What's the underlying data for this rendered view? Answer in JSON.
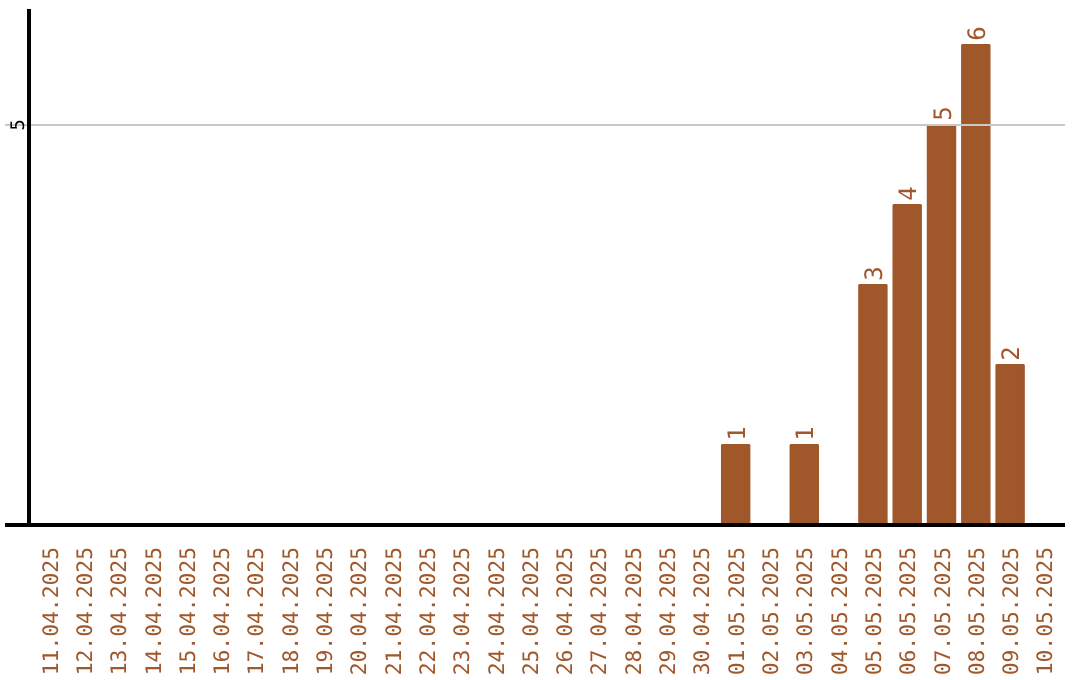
{
  "chart_data": {
    "type": "bar",
    "data_labels": true,
    "ylim": [
      0,
      6.45
    ],
    "categories": [
      "11.04.2025",
      "12.04.2025",
      "13.04.2025",
      "14.04.2025",
      "15.04.2025",
      "16.04.2025",
      "17.04.2025",
      "18.04.2025",
      "19.04.2025",
      "20.04.2025",
      "21.04.2025",
      "22.04.2025",
      "23.04.2025",
      "24.04.2025",
      "25.04.2025",
      "26.04.2025",
      "27.04.2025",
      "28.04.2025",
      "29.04.2025",
      "30.04.2025",
      "01.05.2025",
      "02.05.2025",
      "03.05.2025",
      "04.05.2025",
      "05.05.2025",
      "06.05.2025",
      "07.05.2025",
      "08.05.2025",
      "09.05.2025",
      "10.05.2025"
    ],
    "values": [
      null,
      null,
      null,
      null,
      null,
      null,
      null,
      null,
      null,
      null,
      null,
      null,
      null,
      null,
      null,
      null,
      null,
      null,
      null,
      null,
      1,
      null,
      1,
      null,
      3,
      4,
      5,
      6,
      2,
      null
    ],
    "color": "#a0572a",
    "ref_lines": [
      {
        "axis": "y",
        "value": 5,
        "label": "5",
        "color": "#c8c8c8"
      }
    ]
  }
}
